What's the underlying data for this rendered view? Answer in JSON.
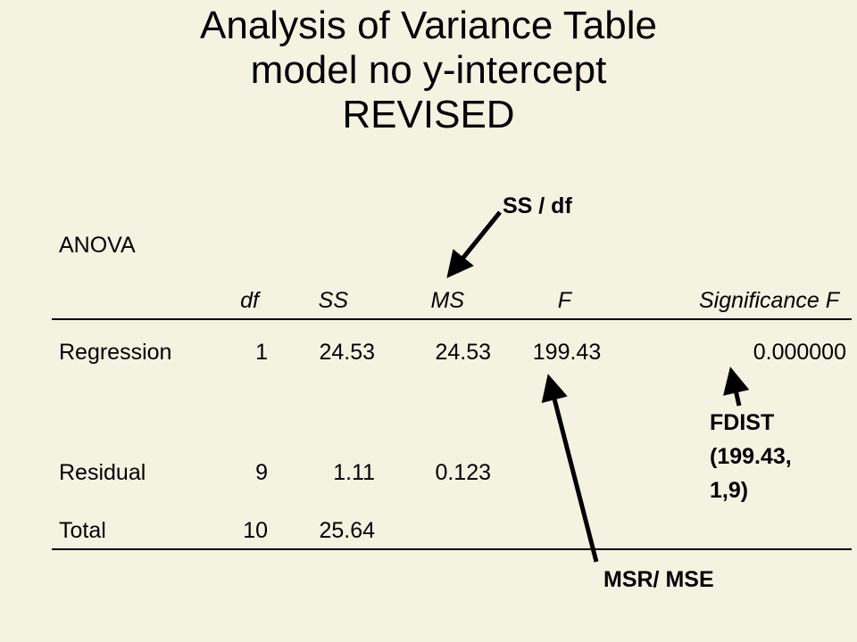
{
  "slide": {
    "title_lines": [
      "Analysis of Variance Table",
      "model no y-intercept",
      "REVISED"
    ]
  },
  "table": {
    "caption": "ANOVA",
    "headers": [
      "",
      "df",
      "SS",
      "MS",
      "F",
      "Significance F"
    ],
    "rows": [
      [
        "Regression",
        "1",
        "24.53",
        "24.53",
        "199.43",
        "0.000000"
      ],
      [
        "Residual",
        "9",
        "1.11",
        "0.123",
        "",
        ""
      ],
      [
        "Total",
        "10",
        "25.64",
        "",
        "",
        ""
      ]
    ]
  },
  "annotations": {
    "ms_note": "SS / df",
    "f_note": "MSR/ MSE",
    "sig_note_lines": [
      "FDIST",
      "(199.43,",
      "1,9)"
    ]
  }
}
